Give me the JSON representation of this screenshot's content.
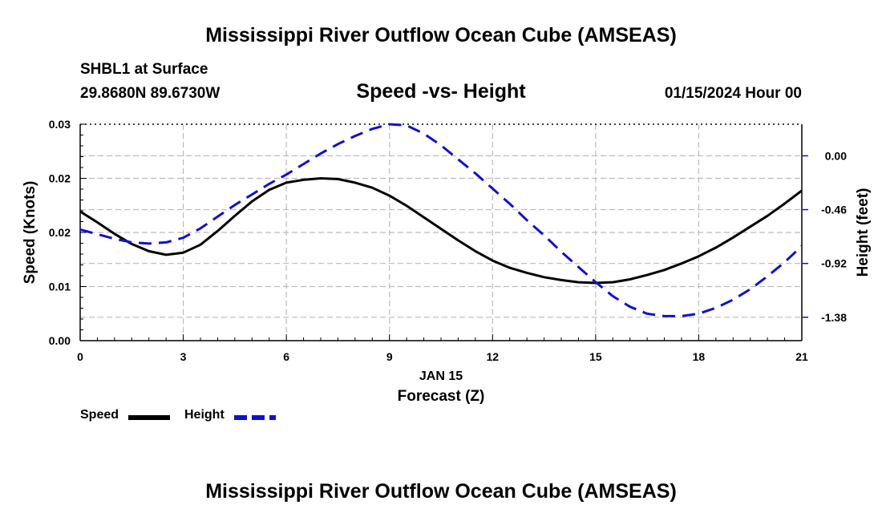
{
  "header": {
    "title": "Mississippi River Outflow Ocean Cube (AMSEAS)",
    "station": "SHBL1 at Surface",
    "coordinates": "29.8680N  89.6730W",
    "subtitle": "Speed -vs- Height",
    "datetime": "01/15/2024 Hour 00"
  },
  "footer": {
    "title": "Mississippi River Outflow Ocean Cube (AMSEAS)"
  },
  "legend": {
    "items": [
      {
        "label": "Speed",
        "color": "#000000",
        "style": "solid"
      },
      {
        "label": "Height",
        "color": "#1111cc",
        "style": "dashed"
      }
    ]
  },
  "chart_data": {
    "type": "line",
    "title": "Speed -vs- Height",
    "xlabel": "Forecast (Z)",
    "xsublabel": "JAN 15",
    "ylabel_left": "Speed (Knots)",
    "ylabel_right": "Height (feet)",
    "xlim": [
      0,
      21
    ],
    "ylim_left": [
      0.0,
      0.03
    ],
    "ylim_right": [
      -1.58,
      0.27
    ],
    "x_ticks": [
      0,
      3,
      6,
      9,
      12,
      15,
      18,
      21
    ],
    "x_tick_labels": [
      "0",
      "3",
      "6",
      "9",
      "12",
      "15",
      "18",
      "21"
    ],
    "y_left_ticks": [
      0.0,
      0.0075,
      0.015,
      0.0225,
      0.03
    ],
    "y_left_tick_labels": [
      "0.00",
      "0.01",
      "0.02",
      "0.02",
      "0.03"
    ],
    "y_right_ticks": [
      0.0,
      -0.46,
      -0.92,
      -1.38
    ],
    "y_right_tick_labels": [
      "0.00",
      "-0.46",
      "-0.92",
      "-1.38"
    ],
    "grid": true,
    "legend_position": "bottom-left",
    "series": [
      {
        "name": "Speed",
        "axis": "left",
        "color": "#000000",
        "dash": "solid",
        "x": [
          0,
          0.5,
          1,
          1.5,
          2,
          2.5,
          3,
          3.5,
          4,
          4.5,
          5,
          5.5,
          6,
          6.5,
          7,
          7.5,
          8,
          8.5,
          9,
          9.5,
          10,
          10.5,
          11,
          11.5,
          12,
          12.5,
          13,
          13.5,
          14,
          14.5,
          15,
          15.5,
          16,
          16.5,
          17,
          17.5,
          18,
          18.5,
          19,
          19.5,
          20,
          20.5,
          21
        ],
        "values": [
          0.0179,
          0.0164,
          0.0148,
          0.0134,
          0.0124,
          0.0119,
          0.0122,
          0.0133,
          0.0152,
          0.0173,
          0.0193,
          0.0209,
          0.0219,
          0.0223,
          0.0225,
          0.0224,
          0.0219,
          0.0212,
          0.0201,
          0.0187,
          0.0171,
          0.0155,
          0.0139,
          0.0124,
          0.0111,
          0.0101,
          0.0094,
          0.0088,
          0.0084,
          0.0081,
          0.008,
          0.0081,
          0.0085,
          0.0091,
          0.0098,
          0.0107,
          0.0117,
          0.0129,
          0.0143,
          0.0158,
          0.0173,
          0.019,
          0.0208
        ]
      },
      {
        "name": "Height",
        "axis": "right",
        "color": "#1111cc",
        "dash": "dashed",
        "x": [
          0,
          0.5,
          1,
          1.5,
          2,
          2.5,
          3,
          3.5,
          4,
          4.5,
          5,
          5.5,
          6,
          6.5,
          7,
          7.5,
          8,
          8.5,
          9,
          9.5,
          10,
          10.5,
          11,
          11.5,
          12,
          12.5,
          13,
          13.5,
          14,
          14.5,
          15,
          15.5,
          16,
          16.5,
          17,
          17.5,
          18,
          18.5,
          19,
          19.5,
          20,
          20.5,
          21
        ],
        "values": [
          -0.63,
          -0.67,
          -0.71,
          -0.74,
          -0.75,
          -0.74,
          -0.7,
          -0.62,
          -0.52,
          -0.42,
          -0.33,
          -0.24,
          -0.16,
          -0.07,
          0.02,
          0.1,
          0.17,
          0.23,
          0.27,
          0.26,
          0.19,
          0.09,
          -0.03,
          -0.15,
          -0.28,
          -0.41,
          -0.55,
          -0.68,
          -0.82,
          -0.95,
          -1.08,
          -1.2,
          -1.29,
          -1.35,
          -1.37,
          -1.37,
          -1.35,
          -1.3,
          -1.23,
          -1.14,
          -1.03,
          -0.91,
          -0.77
        ]
      }
    ]
  }
}
